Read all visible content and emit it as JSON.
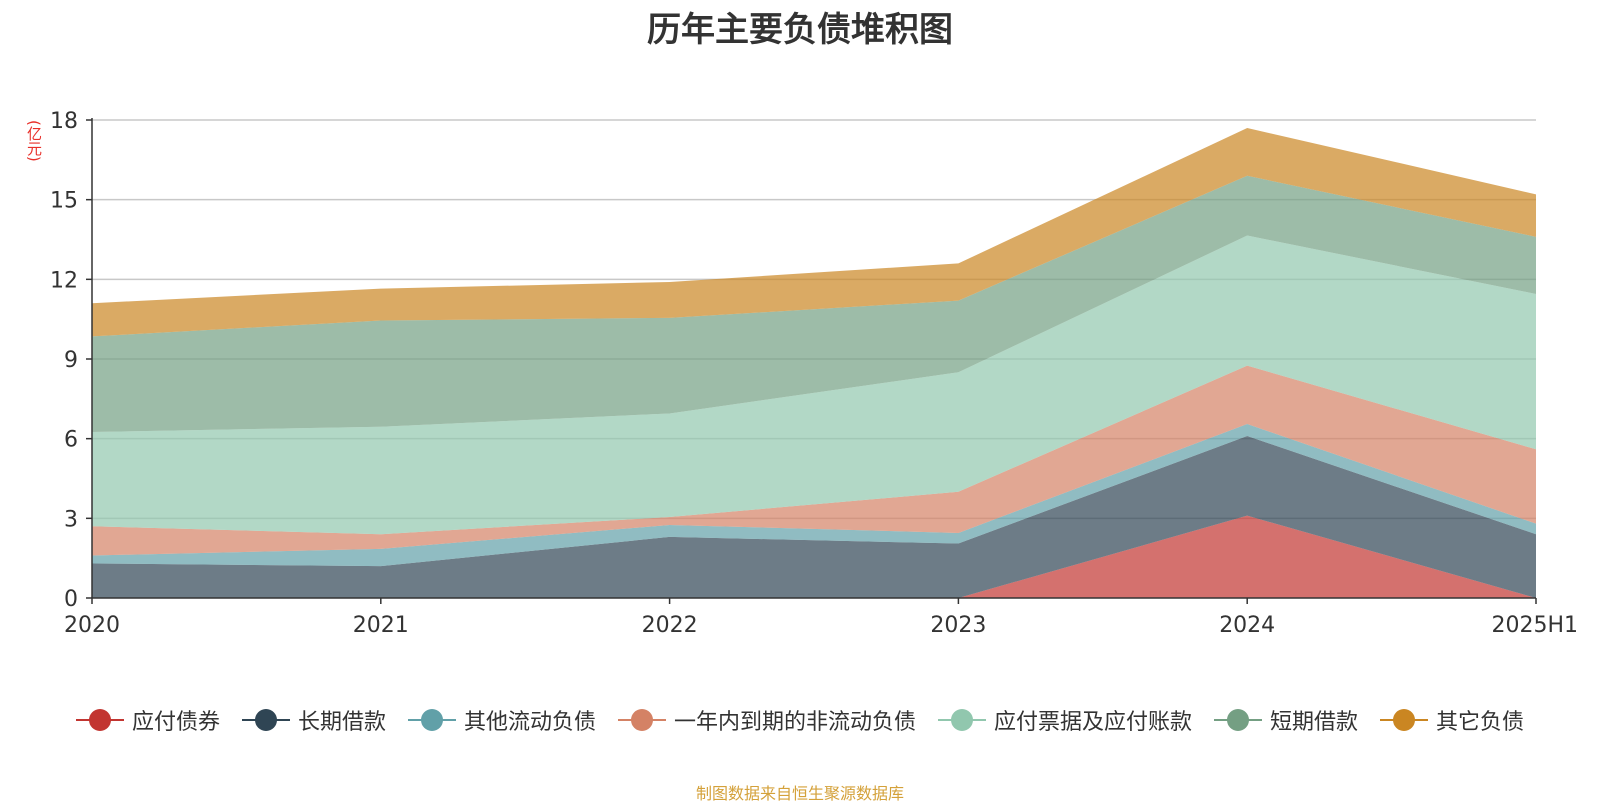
{
  "title": "历年主要负债堆积图",
  "unit": "(亿元)",
  "source": "制图数据来自恒生聚源数据库",
  "chart_data": {
    "type": "area",
    "stacked": true,
    "categories": [
      "2020",
      "2021",
      "2022",
      "2023",
      "2024",
      "2025H1"
    ],
    "ylim": [
      0,
      18
    ],
    "yticks": [
      0,
      3,
      6,
      9,
      12,
      15,
      18
    ],
    "grid": true,
    "legend_position": "bottom",
    "series": [
      {
        "name": "应付债券",
        "color": "#c23531",
        "values": [
          0,
          0,
          0,
          0,
          3.1,
          0
        ]
      },
      {
        "name": "长期借款",
        "color": "#2f4554",
        "values": [
          1.3,
          1.2,
          2.3,
          2.05,
          3.0,
          2.4
        ]
      },
      {
        "name": "其他流动负债",
        "color": "#61a0a8",
        "values": [
          0.3,
          0.65,
          0.45,
          0.4,
          0.45,
          0.4
        ]
      },
      {
        "name": "一年内到期的非流动负债",
        "color": "#d48265",
        "values": [
          1.1,
          0.55,
          0.3,
          1.55,
          2.2,
          2.8
        ]
      },
      {
        "name": "应付票据及应付账款",
        "color": "#91c7ae",
        "values": [
          3.55,
          4.05,
          3.9,
          4.5,
          4.9,
          5.85
        ]
      },
      {
        "name": "短期借款",
        "color": "#749f83",
        "values": [
          3.6,
          4.0,
          3.6,
          2.7,
          2.25,
          2.15
        ]
      },
      {
        "name": "其它负债",
        "color": "#ca8622",
        "values": [
          1.25,
          1.2,
          1.35,
          1.4,
          1.8,
          1.6
        ]
      }
    ]
  }
}
